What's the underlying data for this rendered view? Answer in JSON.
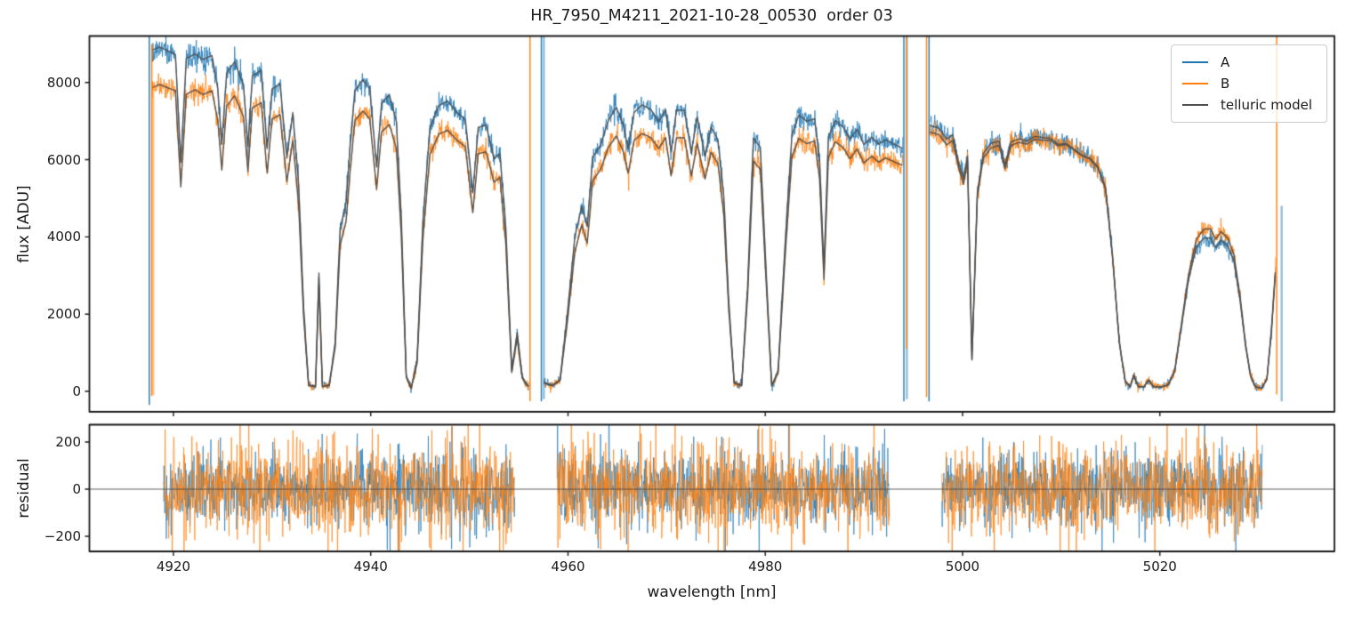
{
  "chart_data": {
    "type": "line",
    "title": "HR_7950_M4211_2021-10-28_00530  order 03",
    "xlabel": "wavelength [nm]",
    "xlim": [
      4911.5,
      5037.7
    ],
    "xticks": [
      4920,
      4940,
      4960,
      4980,
      5000,
      5020
    ],
    "panels": [
      {
        "name": "flux",
        "ylabel": "flux [ADU]",
        "ylim": [
          -530,
          9205
        ],
        "yticks": [
          0,
          2000,
          4000,
          6000,
          8000
        ],
        "grid": false
      },
      {
        "name": "residual",
        "ylabel": "residual",
        "ylim": [
          -272,
          272
        ],
        "yticks": [
          -200,
          0,
          200
        ],
        "zero_line": true,
        "grid": false
      }
    ],
    "legend": {
      "position": "upper right",
      "items": [
        {
          "label": "A",
          "color": "#1f77b4"
        },
        {
          "label": "B",
          "color": "#ff7f0e"
        },
        {
          "label": "telluric model",
          "color": "#4f4f4f"
        }
      ]
    },
    "style": {
      "axis_color": "#1a1a1a",
      "background": "#ffffff",
      "zero_line_color": "#444444"
    },
    "series": {
      "chunks": [
        [
          4917.8,
          4956.05
        ],
        [
          4957.55,
          4993.95
        ],
        [
          4996.7,
          5031.75
        ]
      ],
      "residual_chunks": [
        [
          4919.0,
          4954.6
        ],
        [
          4958.9,
          4992.6
        ],
        [
          4997.9,
          5030.4
        ]
      ],
      "continuum_A": [
        [
          4917.5,
          9100
        ],
        [
          4920,
          9000
        ],
        [
          4923,
          8950
        ],
        [
          4926,
          8850
        ],
        [
          4929,
          8750
        ],
        [
          4932,
          8600
        ],
        [
          4935,
          8500
        ],
        [
          4938,
          8400
        ],
        [
          4941,
          8300
        ],
        [
          4944,
          8150
        ],
        [
          4947,
          7950
        ],
        [
          4950,
          7800
        ],
        [
          4953,
          7700
        ],
        [
          4956,
          7650
        ],
        [
          4958,
          7650
        ],
        [
          4962,
          7750
        ],
        [
          4966,
          7850
        ],
        [
          4970,
          7850
        ],
        [
          4974,
          7800
        ],
        [
          4978,
          7650
        ],
        [
          4982,
          7550
        ],
        [
          4986,
          7500
        ],
        [
          4989,
          7400
        ],
        [
          4992,
          7250
        ],
        [
          4994,
          7150
        ],
        [
          4996.7,
          7100
        ],
        [
          4999,
          7000
        ],
        [
          5002,
          6850
        ],
        [
          5005,
          6800
        ],
        [
          5008,
          6850
        ],
        [
          5011,
          6650
        ],
        [
          5013,
          6500
        ],
        [
          5015,
          6350
        ],
        [
          5017,
          6050
        ],
        [
          5019,
          5700
        ],
        [
          5021,
          5200
        ],
        [
          5023,
          4600
        ],
        [
          5025,
          4050
        ],
        [
          5026,
          3980
        ],
        [
          5027,
          3950
        ],
        [
          5028.5,
          3880
        ],
        [
          5030,
          3800
        ],
        [
          5032,
          3780
        ]
      ],
      "transmission": [
        [
          4917.7,
          0.97
        ],
        [
          4918.6,
          0.985
        ],
        [
          4920.2,
          0.97
        ],
        [
          4920.75,
          0.66
        ],
        [
          4921.3,
          0.96
        ],
        [
          4922.2,
          0.975
        ],
        [
          4923.0,
          0.96
        ],
        [
          4923.9,
          0.975
        ],
        [
          4924.5,
          0.88
        ],
        [
          4924.9,
          0.72
        ],
        [
          4925.4,
          0.93
        ],
        [
          4926.2,
          0.965
        ],
        [
          4927.1,
          0.9
        ],
        [
          4927.55,
          0.72
        ],
        [
          4928.0,
          0.93
        ],
        [
          4928.9,
          0.95
        ],
        [
          4929.5,
          0.72
        ],
        [
          4930.0,
          0.9
        ],
        [
          4930.8,
          0.92
        ],
        [
          4931.5,
          0.7
        ],
        [
          4932.1,
          0.84
        ],
        [
          4932.7,
          0.62
        ],
        [
          4933.2,
          0.25
        ],
        [
          4933.7,
          0.02
        ],
        [
          4934.4,
          0.015
        ],
        [
          4934.75,
          0.36
        ],
        [
          4935.1,
          0.015
        ],
        [
          4935.8,
          0.02
        ],
        [
          4936.4,
          0.15
        ],
        [
          4936.9,
          0.5
        ],
        [
          4937.5,
          0.58
        ],
        [
          4937.9,
          0.75
        ],
        [
          4938.4,
          0.93
        ],
        [
          4939.2,
          0.965
        ],
        [
          4939.9,
          0.94
        ],
        [
          4940.6,
          0.7
        ],
        [
          4941.1,
          0.9
        ],
        [
          4941.9,
          0.93
        ],
        [
          4942.6,
          0.85
        ],
        [
          4943.1,
          0.55
        ],
        [
          4943.6,
          0.05
        ],
        [
          4944.1,
          0.01
        ],
        [
          4944.7,
          0.1
        ],
        [
          4945.3,
          0.55
        ],
        [
          4946.0,
          0.85
        ],
        [
          4946.9,
          0.93
        ],
        [
          4947.8,
          0.95
        ],
        [
          4948.7,
          0.92
        ],
        [
          4949.6,
          0.9
        ],
        [
          4950.35,
          0.66
        ],
        [
          4950.9,
          0.88
        ],
        [
          4951.7,
          0.89
        ],
        [
          4952.5,
          0.78
        ],
        [
          4953.1,
          0.8
        ],
        [
          4953.7,
          0.55
        ],
        [
          4954.3,
          0.07
        ],
        [
          4954.85,
          0.2
        ],
        [
          4955.35,
          0.05
        ],
        [
          4955.9,
          0.02
        ],
        [
          4956.4,
          0.02
        ],
        [
          4957.6,
          0.03
        ],
        [
          4958.4,
          0.02
        ],
        [
          4959.2,
          0.04
        ],
        [
          4959.9,
          0.25
        ],
        [
          4960.7,
          0.52
        ],
        [
          4961.4,
          0.62
        ],
        [
          4961.95,
          0.55
        ],
        [
          4962.5,
          0.78
        ],
        [
          4963.3,
          0.82
        ],
        [
          4964.1,
          0.9
        ],
        [
          4964.9,
          0.94
        ],
        [
          4965.6,
          0.88
        ],
        [
          4966.1,
          0.8
        ],
        [
          4966.7,
          0.92
        ],
        [
          4967.5,
          0.945
        ],
        [
          4968.4,
          0.93
        ],
        [
          4969.2,
          0.89
        ],
        [
          4969.9,
          0.93
        ],
        [
          4970.45,
          0.79
        ],
        [
          4971.0,
          0.93
        ],
        [
          4971.8,
          0.93
        ],
        [
          4972.5,
          0.79
        ],
        [
          4973.1,
          0.91
        ],
        [
          4973.9,
          0.78
        ],
        [
          4974.5,
          0.88
        ],
        [
          4975.2,
          0.84
        ],
        [
          4975.8,
          0.65
        ],
        [
          4976.3,
          0.3
        ],
        [
          4976.85,
          0.03
        ],
        [
          4977.6,
          0.02
        ],
        [
          4978.2,
          0.35
        ],
        [
          4978.8,
          0.86
        ],
        [
          4979.5,
          0.83
        ],
        [
          4980.1,
          0.4
        ],
        [
          4980.65,
          0.02
        ],
        [
          4981.3,
          0.07
        ],
        [
          4982.0,
          0.5
        ],
        [
          4982.7,
          0.88
        ],
        [
          4983.4,
          0.95
        ],
        [
          4984.2,
          0.93
        ],
        [
          4985.0,
          0.94
        ],
        [
          4985.5,
          0.8
        ],
        [
          4985.95,
          0.42
        ],
        [
          4986.4,
          0.88
        ],
        [
          4987.1,
          0.94
        ],
        [
          4987.9,
          0.92
        ],
        [
          4988.6,
          0.88
        ],
        [
          4989.3,
          0.92
        ],
        [
          4990.0,
          0.87
        ],
        [
          4990.8,
          0.9
        ],
        [
          4991.5,
          0.88
        ],
        [
          4992.2,
          0.9
        ],
        [
          4993.0,
          0.89
        ],
        [
          4993.9,
          0.88
        ],
        [
          4996.7,
          0.97
        ],
        [
          4997.6,
          0.965
        ],
        [
          4998.4,
          0.93
        ],
        [
          4999.0,
          0.95
        ],
        [
          4999.6,
          0.85
        ],
        [
          5000.1,
          0.79
        ],
        [
          5000.5,
          0.88
        ],
        [
          5000.95,
          0.12
        ],
        [
          5001.5,
          0.75
        ],
        [
          5002.1,
          0.9
        ],
        [
          5002.9,
          0.94
        ],
        [
          5003.7,
          0.95
        ],
        [
          5004.3,
          0.86
        ],
        [
          5004.9,
          0.95
        ],
        [
          5005.7,
          0.96
        ],
        [
          5006.5,
          0.95
        ],
        [
          5007.3,
          0.965
        ],
        [
          5008.1,
          0.96
        ],
        [
          5008.9,
          0.965
        ],
        [
          5009.7,
          0.95
        ],
        [
          5010.5,
          0.96
        ],
        [
          5011.3,
          0.945
        ],
        [
          5012.1,
          0.93
        ],
        [
          5012.9,
          0.925
        ],
        [
          5013.7,
          0.9
        ],
        [
          5014.5,
          0.82
        ],
        [
          5015.2,
          0.55
        ],
        [
          5015.9,
          0.2
        ],
        [
          5016.5,
          0.04
        ],
        [
          5017.0,
          0.02
        ],
        [
          5017.35,
          0.07
        ],
        [
          5017.8,
          0.02
        ],
        [
          5018.4,
          0.02
        ],
        [
          5018.85,
          0.05
        ],
        [
          5019.4,
          0.02
        ],
        [
          5020.1,
          0.02
        ],
        [
          5020.8,
          0.03
        ],
        [
          5021.5,
          0.1
        ],
        [
          5022.2,
          0.35
        ],
        [
          5022.9,
          0.62
        ],
        [
          5023.7,
          0.85
        ],
        [
          5024.5,
          0.95
        ],
        [
          5025.1,
          0.985
        ],
        [
          5025.65,
          0.93
        ],
        [
          5026.2,
          0.985
        ],
        [
          5026.9,
          0.95
        ],
        [
          5027.5,
          0.86
        ],
        [
          5028.1,
          0.62
        ],
        [
          5028.7,
          0.3
        ],
        [
          5029.2,
          0.1
        ],
        [
          5029.7,
          0.03
        ],
        [
          5030.3,
          0.02
        ],
        [
          5030.85,
          0.08
        ],
        [
          5031.3,
          0.4
        ],
        [
          5031.75,
          0.84
        ]
      ],
      "b_to_a_ratio": [
        [
          4917.5,
          0.89
        ],
        [
          4930,
          0.9
        ],
        [
          4945,
          0.9
        ],
        [
          4956,
          0.9
        ],
        [
          4958,
          0.9
        ],
        [
          4970,
          0.9
        ],
        [
          4980,
          0.91
        ],
        [
          4986,
          0.92
        ],
        [
          4994,
          0.93
        ],
        [
          4996.7,
          0.975
        ],
        [
          5002,
          0.98
        ],
        [
          5008,
          0.99
        ],
        [
          5012,
          1.0
        ],
        [
          5016,
          1.01
        ],
        [
          5021,
          1.03
        ],
        [
          5025,
          1.06
        ],
        [
          5027,
          1.055
        ],
        [
          5029,
          1.04
        ],
        [
          5032,
          1.03
        ]
      ],
      "edge_spikes": [
        {
          "wavelength": 4917.55,
          "series": "A",
          "from": -350,
          "to": 9205,
          "soft": false
        },
        {
          "wavelength": 4917.8,
          "series": "B",
          "from": -120,
          "to": 8990,
          "soft": false
        },
        {
          "wavelength": 4917.95,
          "series": "B",
          "from": -100,
          "to": 8000,
          "soft": true
        },
        {
          "wavelength": 4956.15,
          "series": "B",
          "from": -255,
          "to": 9205,
          "soft": false
        },
        {
          "wavelength": 4957.3,
          "series": "A",
          "from": -260,
          "to": 9205,
          "soft": false
        },
        {
          "wavelength": 4957.55,
          "series": "A",
          "from": -200,
          "to": 9205,
          "soft": true
        },
        {
          "wavelength": 4994.05,
          "series": "A",
          "from": -260,
          "to": 9205,
          "soft": false
        },
        {
          "wavelength": 4994.35,
          "series": "A",
          "from": -200,
          "to": 9205,
          "soft": true
        },
        {
          "wavelength": 4994.3,
          "series": "B",
          "from": 1100,
          "to": 9205,
          "soft": false
        },
        {
          "wavelength": 4996.35,
          "series": "B",
          "from": -150,
          "to": 9205,
          "soft": false
        },
        {
          "wavelength": 4996.6,
          "series": "A",
          "from": -260,
          "to": 9205,
          "soft": false
        },
        {
          "wavelength": 5031.85,
          "series": "B",
          "from": -80,
          "to": 9205,
          "soft": false
        },
        {
          "wavelength": 5032.35,
          "series": "A",
          "from": -260,
          "to": 4800,
          "soft": true
        }
      ],
      "noise": {
        "flux_base": 55,
        "flux_coeff": 0.0135,
        "residual_sigma_A": 80,
        "residual_sigma_B": 95,
        "tail_prob": 0.025,
        "tail_factor": 2.4
      }
    }
  }
}
